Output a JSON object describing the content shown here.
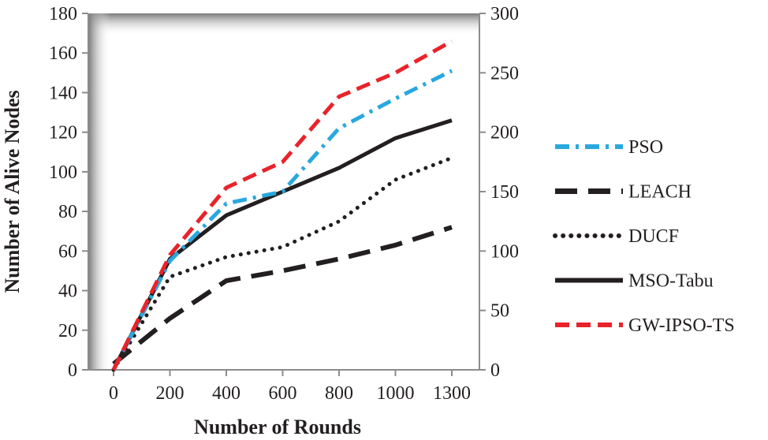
{
  "chart_data": {
    "type": "line",
    "title": "",
    "xlabel": "Number of Rounds",
    "ylabel": "Number of Alive Nodes",
    "categories": [
      "0",
      "200",
      "400",
      "600",
      "800",
      "1000",
      "1300"
    ],
    "ylim": [
      0,
      180
    ],
    "yticks": [
      "0",
      "20",
      "40",
      "60",
      "80",
      "100",
      "120",
      "140",
      "160",
      "180"
    ],
    "y2lim": [
      0,
      300
    ],
    "y2ticks": [
      "0",
      "50",
      "100",
      "150",
      "200",
      "250",
      "300"
    ],
    "legend_position": "right",
    "series": [
      {
        "name": "PSO",
        "style": "dash-dot",
        "color": "#29a8df",
        "values": [
          0,
          55,
          84,
          90,
          122,
          137,
          151
        ]
      },
      {
        "name": "LEACH",
        "style": "long-dash",
        "color": "#231f20",
        "values": [
          3,
          26,
          45,
          50,
          56,
          63,
          72
        ]
      },
      {
        "name": "DUCF",
        "style": "dotted",
        "color": "#231f20",
        "values": [
          0,
          47,
          57,
          62,
          75,
          96,
          107
        ]
      },
      {
        "name": "MSO-Tabu",
        "style": "solid",
        "color": "#231f20",
        "values": [
          0,
          56,
          78,
          90,
          102,
          117,
          126
        ]
      },
      {
        "name": "GW-IPSO-TS",
        "style": "dash",
        "color": "#e8232a",
        "values": [
          0,
          58,
          92,
          105,
          138,
          150,
          166
        ]
      }
    ]
  }
}
